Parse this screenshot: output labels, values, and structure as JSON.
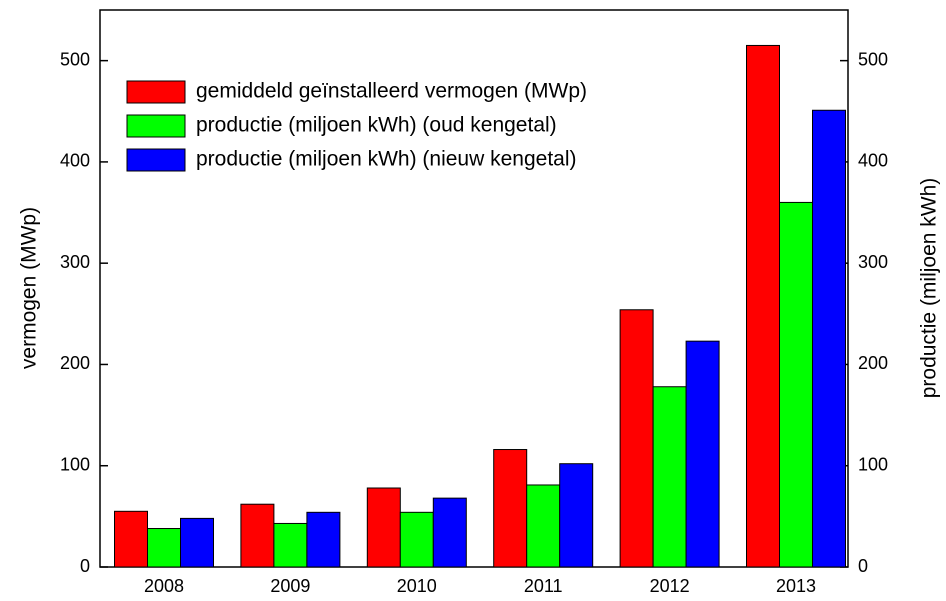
{
  "chart_data": {
    "type": "bar",
    "categories": [
      "2008",
      "2009",
      "2010",
      "2011",
      "2012",
      "2013"
    ],
    "series": [
      {
        "name": "gemiddeld geïnstalleerd vermogen (MWp)",
        "color": "#ff0000",
        "values": [
          55,
          62,
          78,
          116,
          254,
          515
        ]
      },
      {
        "name": "productie (miljoen kWh) (oud kengetal)",
        "color": "#00ff00",
        "axis": "y2",
        "values": [
          38,
          43,
          54,
          81,
          178,
          360
        ]
      },
      {
        "name": "productie (miljoen kWh) (nieuw kengetal)",
        "color": "#0000ff",
        "axis": "y2",
        "values": [
          48,
          54,
          68,
          102,
          223,
          451
        ]
      }
    ],
    "ylabel": "vermogen (MWp)",
    "y2label": "productie (miljoen kWh)",
    "ylim": [
      0,
      550
    ],
    "yticks": [
      0,
      100,
      200,
      300,
      400,
      500
    ],
    "y2lim": [
      0,
      550
    ],
    "y2ticks": [
      0,
      100,
      200,
      300,
      400,
      500
    ],
    "legend": "upper left"
  }
}
